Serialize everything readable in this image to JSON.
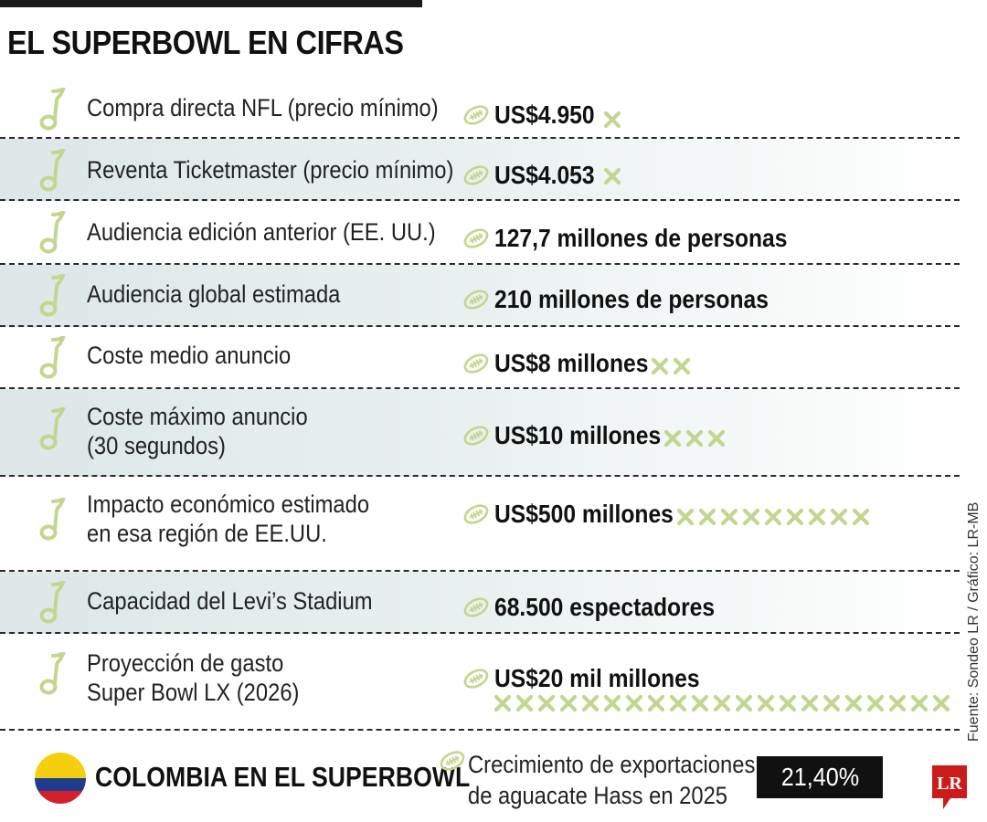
{
  "title": "EL SUPERBOWL EN CIFRAS",
  "colors": {
    "accent": "#c3d690",
    "shade": "#e3ecec",
    "rule": "#2b2b2b",
    "flag_yellow": "#f5cf0e",
    "flag_blue": "#1f3d8c",
    "flag_red": "#d3202a",
    "logo_red": "#cc1b1b"
  },
  "rows": [
    {
      "label": "Compra directa NFL (precio mínimo)",
      "value": "US$4.950",
      "marks": 1
    },
    {
      "label": "Reventa Ticketmaster (precio mínimo)",
      "value": "US$4.053",
      "marks": 1
    },
    {
      "label": "Audiencia edición anterior (EE. UU.)",
      "value": "127,7 millones de personas",
      "marks": 0
    },
    {
      "label": "Audiencia global estimada",
      "value": "210 millones de personas",
      "marks": 0
    },
    {
      "label": "Coste medio anuncio",
      "value": "US$8 millones",
      "marks": 2
    },
    {
      "label": "Coste máximo anuncio\n(30 segundos)",
      "value": "US$10 millones",
      "marks": 3
    },
    {
      "label": "Impacto económico estimado\nen esa región de EE.UU.",
      "value": "US$500 millones",
      "marks": 9
    },
    {
      "label": "Capacidad del Levi’s Stadium",
      "value": "68.500 espectadores",
      "marks": 0
    },
    {
      "label": "Proyección de gasto\nSuper Bowl LX (2026)",
      "value": "US$20 mil millones",
      "marks": 21
    }
  ],
  "colombia": {
    "title": "COLOMBIA EN EL SUPERBOWL",
    "text": "Crecimiento de exportaciones\nde aguacate Hass en 2025",
    "value": "21,40%"
  },
  "logo": "LR",
  "source": "Fuente: Sondeo LR / Gráfico: LR-MB",
  "icons": {
    "row": "music-note-icon",
    "value": "football-icon",
    "mark": "x-mark-icon"
  }
}
